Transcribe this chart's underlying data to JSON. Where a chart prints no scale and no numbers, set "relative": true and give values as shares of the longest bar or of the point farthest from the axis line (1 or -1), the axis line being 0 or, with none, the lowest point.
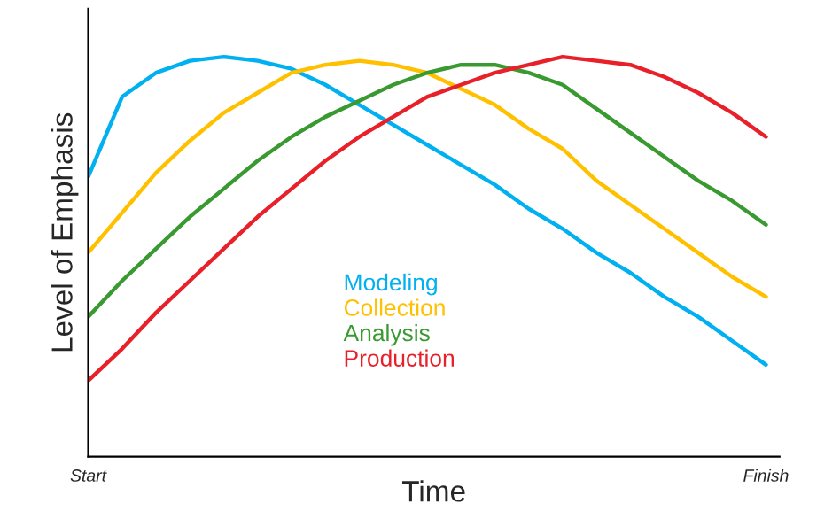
{
  "chart_data": {
    "type": "line",
    "relative": true,
    "xlabel": "Time",
    "ylabel": "Level of Emphasis",
    "categories": [
      "Start",
      null,
      null,
      null,
      null,
      null,
      null,
      null,
      null,
      null,
      null,
      null,
      null,
      null,
      null,
      null,
      null,
      null,
      null,
      null,
      "Finish"
    ],
    "legend": "center",
    "grid": false,
    "marker": "none",
    "line_style": "solid",
    "series": [
      {
        "name": "Modeling",
        "color": "#00b0f0",
        "values": [
          0.7,
          0.9,
          0.96,
          0.99,
          1.0,
          0.99,
          0.97,
          0.93,
          0.88,
          0.83,
          0.78,
          0.73,
          0.68,
          0.62,
          0.57,
          0.51,
          0.46,
          0.4,
          0.35,
          0.29,
          0.23
        ]
      },
      {
        "name": "Collection",
        "color": "#ffc000",
        "values": [
          0.51,
          0.61,
          0.71,
          0.79,
          0.86,
          0.91,
          0.96,
          0.98,
          0.99,
          0.98,
          0.96,
          0.92,
          0.88,
          0.82,
          0.77,
          0.69,
          0.63,
          0.57,
          0.51,
          0.45,
          0.4
        ]
      },
      {
        "name": "Analysis",
        "color": "#3a9a32",
        "values": [
          0.35,
          0.44,
          0.52,
          0.6,
          0.67,
          0.74,
          0.8,
          0.85,
          0.89,
          0.93,
          0.96,
          0.98,
          0.98,
          0.96,
          0.93,
          0.87,
          0.81,
          0.75,
          0.69,
          0.64,
          0.58
        ]
      },
      {
        "name": "Production",
        "color": "#e8202a",
        "values": [
          0.19,
          0.27,
          0.36,
          0.44,
          0.52,
          0.6,
          0.67,
          0.74,
          0.8,
          0.85,
          0.9,
          0.93,
          0.96,
          0.98,
          1.0,
          0.99,
          0.98,
          0.95,
          0.91,
          0.86,
          0.8
        ]
      }
    ]
  }
}
